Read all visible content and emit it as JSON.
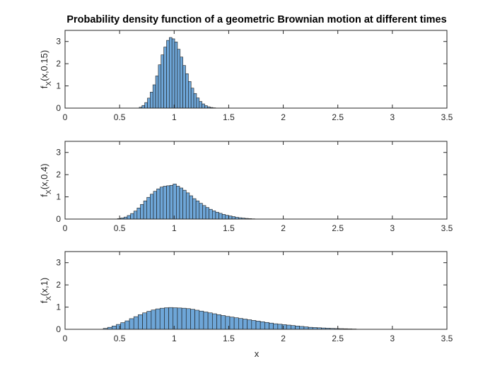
{
  "chart_data": {
    "type": "bar",
    "title": "Probability density function of a geometric Brownian motion at different times",
    "xlabel": "x",
    "bar_color": "#6ea6d8",
    "edge_color": "#1a1a1a",
    "subplots": [
      {
        "ylabel_main": "f",
        "ylabel_sub": "X",
        "ylabel_rest": "(x,0.15)",
        "xlim": [
          0,
          3.5
        ],
        "ylim": [
          0,
          3.5
        ],
        "xticks": [
          "0",
          "0.5",
          "1",
          "1.5",
          "2",
          "2.5",
          "3",
          "3.5"
        ],
        "yticks": [
          "0",
          "1",
          "2",
          "3"
        ],
        "bin_start": 0.68,
        "bin_width": 0.025,
        "values": [
          0.04,
          0.12,
          0.25,
          0.45,
          0.72,
          1.05,
          1.45,
          1.95,
          2.4,
          2.75,
          3.05,
          3.18,
          3.12,
          2.98,
          2.65,
          2.3,
          1.92,
          1.55,
          1.2,
          0.9,
          0.66,
          0.46,
          0.3,
          0.19,
          0.11,
          0.06,
          0.03,
          0.015
        ]
      },
      {
        "ylabel_main": "f",
        "ylabel_sub": "X",
        "ylabel_rest": "(x,0.4)",
        "xlim": [
          0,
          3.5
        ],
        "ylim": [
          0,
          3.5
        ],
        "xticks": [
          "0",
          "0.5",
          "1",
          "1.5",
          "2",
          "2.5",
          "3",
          "3.5"
        ],
        "yticks": [
          "0",
          "1",
          "2",
          "3"
        ],
        "bin_start": 0.48,
        "bin_width": 0.03,
        "values": [
          0.02,
          0.05,
          0.09,
          0.16,
          0.25,
          0.36,
          0.5,
          0.66,
          0.82,
          0.98,
          1.12,
          1.25,
          1.36,
          1.44,
          1.48,
          1.5,
          1.52,
          1.58,
          1.48,
          1.4,
          1.3,
          1.18,
          1.05,
          0.92,
          0.82,
          0.71,
          0.61,
          0.52,
          0.44,
          0.37,
          0.31,
          0.26,
          0.21,
          0.17,
          0.14,
          0.11,
          0.08,
          0.06,
          0.045,
          0.03,
          0.02,
          0.012,
          0.006,
          0.003,
          0.001,
          0.001,
          0.001,
          0.001,
          0.001,
          0.001,
          0.001
        ]
      },
      {
        "ylabel_main": "f",
        "ylabel_sub": "X",
        "ylabel_rest": "(x,1)",
        "xlim": [
          0,
          3.5
        ],
        "ylim": [
          0,
          3.5
        ],
        "xticks": [
          "0",
          "0.5",
          "1",
          "1.5",
          "2",
          "2.5",
          "3",
          "3.5"
        ],
        "yticks": [
          "0",
          "1",
          "2",
          "3"
        ],
        "bin_start": 0.35,
        "bin_width": 0.04,
        "values": [
          0.04,
          0.09,
          0.15,
          0.22,
          0.3,
          0.38,
          0.48,
          0.57,
          0.66,
          0.74,
          0.81,
          0.87,
          0.92,
          0.95,
          0.97,
          0.98,
          0.97,
          0.96,
          0.95,
          0.93,
          0.9,
          0.86,
          0.82,
          0.78,
          0.74,
          0.7,
          0.66,
          0.62,
          0.58,
          0.55,
          0.52,
          0.49,
          0.46,
          0.43,
          0.4,
          0.37,
          0.34,
          0.31,
          0.28,
          0.25,
          0.23,
          0.21,
          0.19,
          0.17,
          0.15,
          0.13,
          0.11,
          0.09,
          0.08,
          0.07,
          0.06,
          0.05,
          0.04,
          0.035,
          0.03,
          0.025,
          0.02,
          0.015
        ]
      }
    ]
  }
}
